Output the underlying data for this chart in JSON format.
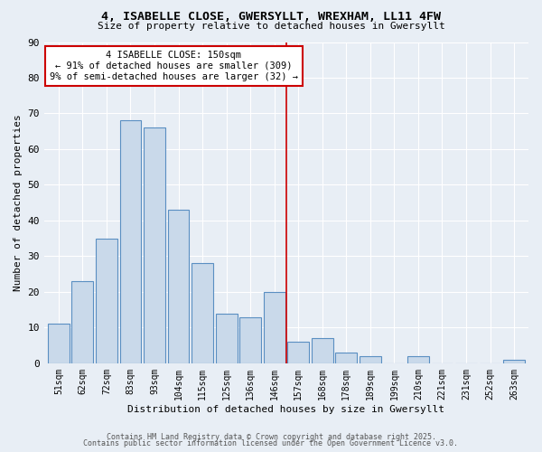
{
  "title1": "4, ISABELLE CLOSE, GWERSYLLT, WREXHAM, LL11 4FW",
  "title2": "Size of property relative to detached houses in Gwersyllt",
  "xlabel": "Distribution of detached houses by size in Gwersyllt",
  "ylabel": "Number of detached properties",
  "bar_labels": [
    "51sqm",
    "62sqm",
    "72sqm",
    "83sqm",
    "93sqm",
    "104sqm",
    "115sqm",
    "125sqm",
    "136sqm",
    "146sqm",
    "157sqm",
    "168sqm",
    "178sqm",
    "189sqm",
    "199sqm",
    "210sqm",
    "221sqm",
    "231sqm",
    "252sqm",
    "263sqm"
  ],
  "bar_values": [
    11,
    23,
    35,
    68,
    66,
    43,
    28,
    14,
    13,
    20,
    6,
    7,
    3,
    2,
    0,
    2,
    0,
    0,
    0,
    1
  ],
  "bar_color": "#c9d9ea",
  "bar_edge_color": "#5a8fc2",
  "background_color": "#e8eef5",
  "grid_color": "#ffffff",
  "red_line_index": 9.5,
  "annotation_text": "4 ISABELLE CLOSE: 150sqm\n← 91% of detached houses are smaller (309)\n9% of semi-detached houses are larger (32) →",
  "annotation_box_color": "#ffffff",
  "annotation_box_edge_color": "#cc0000",
  "ylim": [
    0,
    90
  ],
  "yticks": [
    0,
    10,
    20,
    30,
    40,
    50,
    60,
    70,
    80,
    90
  ],
  "footer1": "Contains HM Land Registry data © Crown copyright and database right 2025.",
  "footer2": "Contains public sector information licensed under the Open Government Licence v3.0."
}
